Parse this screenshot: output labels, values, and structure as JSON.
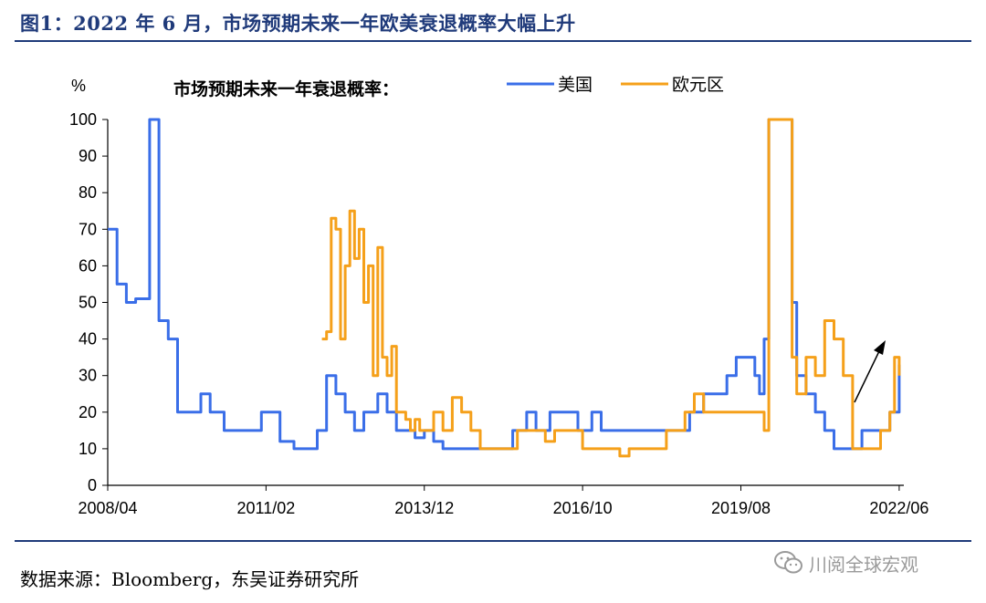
{
  "title": "图1：2022 年 6 月，市场预期未来一年欧美衰退概率大幅上升",
  "source": "数据来源：Bloomberg，东吴证券研究所",
  "watermark": {
    "text": "川阅全球宏观",
    "icon": "wechat-icon"
  },
  "chart_data": {
    "type": "line",
    "subtitle": "市场预期未来一年衰退概率：",
    "ylabel": "%",
    "ylim": [
      0,
      100
    ],
    "yticks": [
      0,
      10,
      20,
      30,
      40,
      50,
      60,
      70,
      80,
      90,
      100
    ],
    "xlim": [
      "2008-04",
      "2022-07"
    ],
    "xticks": [
      "2008/04",
      "2011/02",
      "2013/12",
      "2016/10",
      "2019/08",
      "2022/06"
    ],
    "legend_position": "top-right",
    "annotation": "upward-arrow",
    "colors": {
      "美国": "#3a6ee8",
      "欧元区": "#f5a01a",
      "axis": "#000000",
      "title": "#1f3a7a"
    },
    "series": [
      {
        "name": "美国",
        "x": [
          "2008-04",
          "2008-06",
          "2008-08",
          "2008-10",
          "2009-01",
          "2009-03",
          "2009-05",
          "2009-07",
          "2009-09",
          "2009-12",
          "2010-02",
          "2010-05",
          "2010-08",
          "2011-01",
          "2011-04",
          "2011-05",
          "2011-08",
          "2012-01",
          "2012-03",
          "2012-05",
          "2012-07",
          "2012-09",
          "2012-11",
          "2012-12",
          "2013-02",
          "2013-04",
          "2013-06",
          "2013-08",
          "2013-10",
          "2013-12",
          "2014-02",
          "2014-04",
          "2014-07",
          "2014-10",
          "2015-01",
          "2015-04",
          "2015-07",
          "2015-10",
          "2015-12",
          "2016-03",
          "2016-05",
          "2016-07",
          "2016-09",
          "2016-12",
          "2017-02",
          "2017-04",
          "2017-08",
          "2018-02",
          "2018-06",
          "2018-09",
          "2018-12",
          "2019-03",
          "2019-05",
          "2019-07",
          "2019-09",
          "2019-11",
          "2019-12",
          "2020-01",
          "2020-02",
          "2020-03",
          "2020-05",
          "2020-07",
          "2020-08",
          "2020-10",
          "2020-12",
          "2021-02",
          "2021-04",
          "2021-06",
          "2021-08",
          "2021-10",
          "2021-12",
          "2022-02",
          "2022-04",
          "2022-06"
        ],
        "values": [
          70,
          55,
          50,
          51,
          100,
          45,
          40,
          20,
          20,
          25,
          20,
          15,
          15,
          20,
          20,
          12,
          10,
          15,
          30,
          25,
          20,
          15,
          20,
          20,
          25,
          20,
          15,
          15,
          13,
          15,
          12,
          10,
          10,
          10,
          10,
          10,
          15,
          20,
          15,
          20,
          20,
          20,
          15,
          20,
          15,
          15,
          15,
          15,
          15,
          20,
          25,
          25,
          30,
          35,
          35,
          30,
          25,
          40,
          100,
          100,
          100,
          50,
          30,
          25,
          20,
          15,
          10,
          10,
          10,
          15,
          15,
          15,
          20,
          33
        ]
      },
      {
        "name": "欧元区",
        "x": [
          "2012-02",
          "2012-03",
          "2012-04",
          "2012-05",
          "2012-06",
          "2012-07",
          "2012-08",
          "2012-09",
          "2012-10",
          "2012-11",
          "2012-12",
          "2013-01",
          "2013-02",
          "2013-03",
          "2013-04",
          "2013-05",
          "2013-06",
          "2013-07",
          "2013-08",
          "2013-09",
          "2013-10",
          "2013-11",
          "2013-12",
          "2014-02",
          "2014-04",
          "2014-06",
          "2014-08",
          "2014-10",
          "2014-12",
          "2015-02",
          "2015-04",
          "2015-06",
          "2015-08",
          "2015-10",
          "2015-12",
          "2016-02",
          "2016-04",
          "2016-06",
          "2016-08",
          "2016-10",
          "2016-12",
          "2017-02",
          "2017-04",
          "2017-06",
          "2017-08",
          "2017-10",
          "2017-12",
          "2018-02",
          "2018-04",
          "2018-06",
          "2018-08",
          "2018-10",
          "2018-12",
          "2019-02",
          "2019-04",
          "2019-06",
          "2019-08",
          "2019-09",
          "2019-10",
          "2019-12",
          "2020-01",
          "2020-02",
          "2020-03",
          "2020-05",
          "2020-07",
          "2020-08",
          "2020-10",
          "2020-12",
          "2021-02",
          "2021-04",
          "2021-06",
          "2021-08",
          "2021-10",
          "2021-12",
          "2022-02",
          "2022-04",
          "2022-05",
          "2022-06"
        ],
        "values": [
          40,
          42,
          73,
          70,
          40,
          60,
          75,
          62,
          70,
          50,
          60,
          30,
          65,
          35,
          30,
          38,
          20,
          20,
          18,
          15,
          18,
          15,
          15,
          20,
          15,
          24,
          20,
          15,
          10,
          10,
          10,
          10,
          15,
          15,
          15,
          12,
          15,
          15,
          15,
          10,
          10,
          10,
          10,
          8,
          10,
          10,
          10,
          10,
          15,
          15,
          20,
          25,
          20,
          20,
          20,
          20,
          20,
          20,
          20,
          20,
          15,
          100,
          100,
          100,
          35,
          25,
          35,
          30,
          45,
          40,
          30,
          10,
          10,
          10,
          15,
          20,
          35,
          30
        ]
      }
    ]
  }
}
